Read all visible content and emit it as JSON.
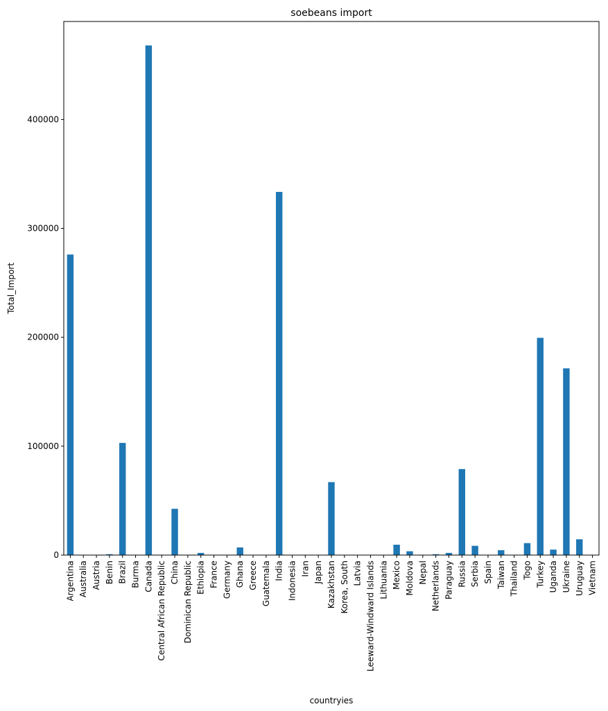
{
  "chart_data": {
    "type": "bar",
    "title": "soebeans import",
    "xlabel": "countryies",
    "ylabel": "Total_Import",
    "ylim": [
      0,
      490000
    ],
    "yticks": [
      0,
      100000,
      200000,
      300000,
      400000
    ],
    "ytick_labels": [
      "0",
      "100000",
      "200000",
      "300000",
      "400000"
    ],
    "grid": false,
    "color": "#1f77b4",
    "categories": [
      "Argentina",
      "Australia",
      "Austria",
      "Benin",
      "Brazil",
      "Burma",
      "Canada",
      "Central African Republic",
      "China",
      "Dominican Republic",
      "Ethiopia",
      "France",
      "Germany",
      "Ghana",
      "Greece",
      "Guatemala",
      "India",
      "Indonesia",
      "Iran",
      "Japan",
      "Kazakhstan",
      "Korea, South",
      "Latvia",
      "Leeward-Windward Islands",
      "Lithuania",
      "Mexico",
      "Moldova",
      "Nepal",
      "Netherlands",
      "Paraguay",
      "Russia",
      "Serbia",
      "Spain",
      "Taiwan",
      "Thailand",
      "Togo",
      "Turkey",
      "Uganda",
      "Ukraine",
      "Uruguay",
      "Vietnam"
    ],
    "values": [
      276000,
      0,
      0,
      800,
      103000,
      0,
      468000,
      0,
      42500,
      0,
      2000,
      0,
      0,
      7000,
      0,
      0,
      333500,
      0,
      0,
      0,
      67000,
      0,
      0,
      0,
      0,
      9500,
      3500,
      0,
      800,
      2000,
      79000,
      8500,
      0,
      4500,
      0,
      11000,
      199500,
      5000,
      171500,
      14500,
      0
    ]
  }
}
